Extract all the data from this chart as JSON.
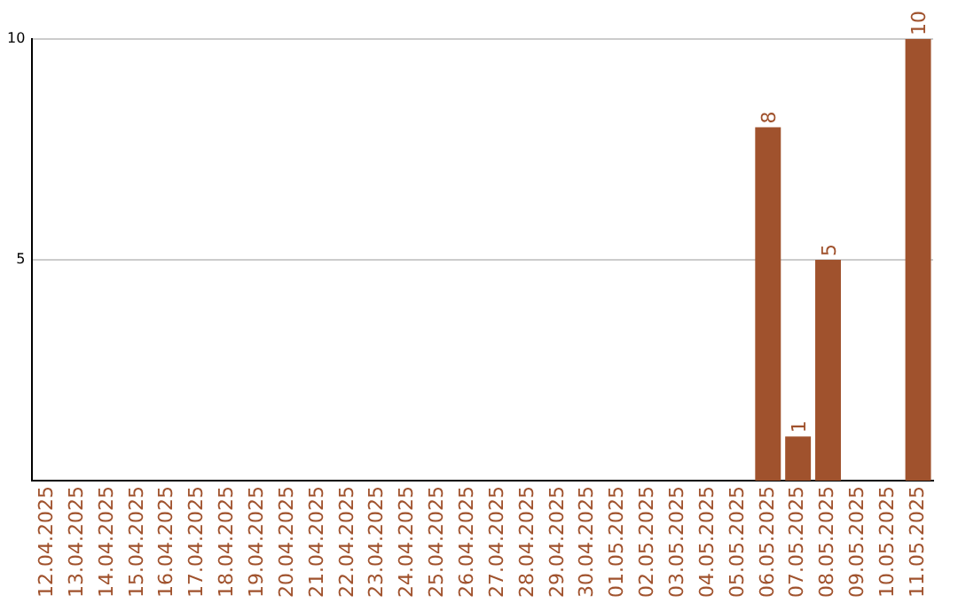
{
  "chart_data": {
    "type": "bar",
    "categories": [
      "12.04.2025",
      "13.04.2025",
      "14.04.2025",
      "15.04.2025",
      "16.04.2025",
      "17.04.2025",
      "18.04.2025",
      "19.04.2025",
      "20.04.2025",
      "21.04.2025",
      "22.04.2025",
      "23.04.2025",
      "24.04.2025",
      "25.04.2025",
      "26.04.2025",
      "27.04.2025",
      "28.04.2025",
      "29.04.2025",
      "30.04.2025",
      "01.05.2025",
      "02.05.2025",
      "03.05.2025",
      "04.05.2025",
      "05.05.2025",
      "06.05.2025",
      "07.05.2025",
      "08.05.2025",
      "09.05.2025",
      "10.05.2025",
      "11.05.2025"
    ],
    "values": [
      0,
      0,
      0,
      0,
      0,
      0,
      0,
      0,
      0,
      0,
      0,
      0,
      0,
      0,
      0,
      0,
      0,
      0,
      0,
      0,
      0,
      0,
      0,
      0,
      8,
      1,
      5,
      0,
      0,
      10
    ],
    "value_labels": [
      null,
      null,
      null,
      null,
      null,
      null,
      null,
      null,
      null,
      null,
      null,
      null,
      null,
      null,
      null,
      null,
      null,
      null,
      null,
      null,
      null,
      null,
      null,
      null,
      "8",
      "1",
      "5",
      null,
      null,
      "10"
    ],
    "color": "#a0522d",
    "ylim": [
      0,
      10
    ],
    "yticks": [
      5,
      10
    ],
    "grid": "y",
    "legend": false
  }
}
